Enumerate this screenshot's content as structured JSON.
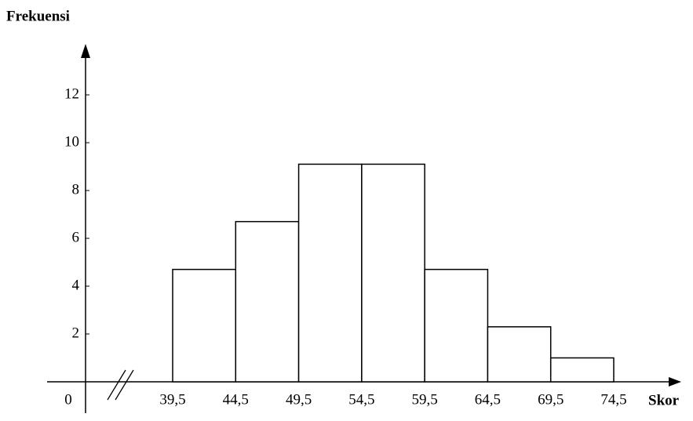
{
  "chart_data": {
    "type": "histogram",
    "y_label": "Frekuensi",
    "x_label": "Skor",
    "bins": [
      {
        "value": 39.5,
        "label": "39,5"
      },
      {
        "value": 44.5,
        "label": "44,5"
      },
      {
        "value": 49.5,
        "label": "49,5"
      },
      {
        "value": 54.5,
        "label": "54,5"
      },
      {
        "value": 59.5,
        "label": "59,5"
      },
      {
        "value": 64.5,
        "label": "64,5"
      },
      {
        "value": 69.5,
        "label": "69,5"
      },
      {
        "value": 74.5,
        "label": "74,5"
      }
    ],
    "values": [
      4.7,
      6.7,
      9.1,
      9.1,
      4.7,
      2.3,
      1.0
    ],
    "color": "#ffffff",
    "edge_color": "#000000",
    "ylim": [
      0,
      14
    ],
    "yticks": [
      0,
      2,
      4,
      6,
      8,
      10,
      12
    ]
  }
}
